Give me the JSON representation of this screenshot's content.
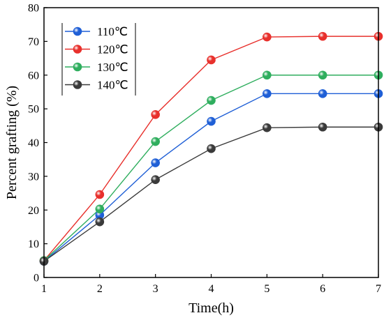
{
  "chart_data": {
    "type": "line",
    "title": "",
    "xlabel": "Time(h)",
    "ylabel": "Percent grafting (%)",
    "x": [
      1,
      2,
      3,
      4,
      5,
      6,
      7
    ],
    "xlim": [
      1,
      7
    ],
    "ylim": [
      0,
      80
    ],
    "xticks": [
      1,
      2,
      3,
      4,
      5,
      6,
      7
    ],
    "yticks": [
      0,
      10,
      20,
      30,
      40,
      50,
      60,
      70,
      80
    ],
    "grid": false,
    "legend_position": "top-left",
    "series": [
      {
        "name": "110℃",
        "color": "#1f5fd6",
        "values": [
          4.8,
          18.5,
          34.0,
          46.3,
          54.5,
          54.5,
          54.5
        ]
      },
      {
        "name": "120℃",
        "color": "#e8302c",
        "values": [
          5.0,
          24.6,
          48.3,
          64.5,
          71.3,
          71.5,
          71.5
        ]
      },
      {
        "name": "130℃",
        "color": "#2fae5e",
        "values": [
          5.0,
          20.3,
          40.3,
          52.5,
          60.0,
          60.0,
          60.0
        ]
      },
      {
        "name": "140℃",
        "color": "#3a3a3a",
        "values": [
          4.8,
          16.5,
          29.0,
          38.2,
          44.4,
          44.6,
          44.6
        ]
      }
    ]
  }
}
